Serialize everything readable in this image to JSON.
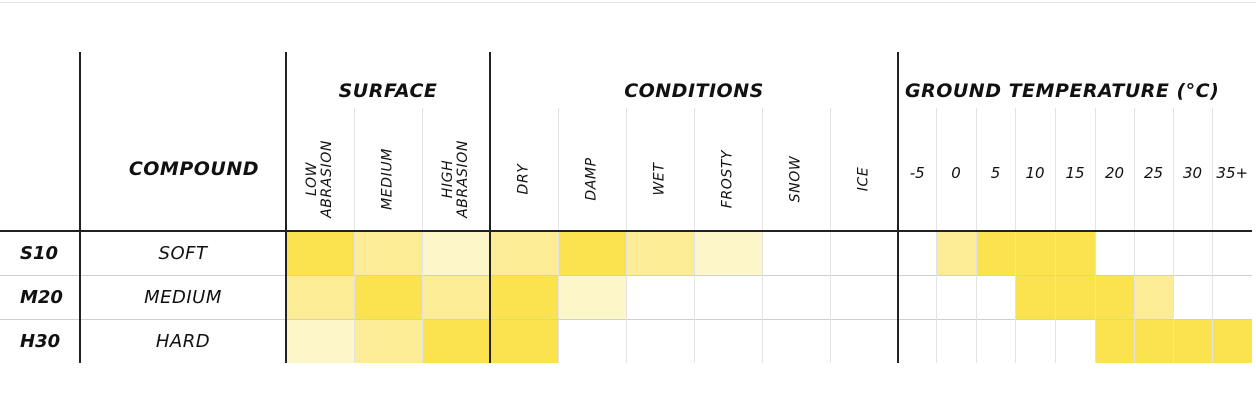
{
  "headers": {
    "surface": "SURFACE",
    "conditions": "CONDITIONS",
    "ground_temperature": "GROUND TEMPERATURE (°C)",
    "compound": "COMPOUND"
  },
  "surface_columns": [
    "LOW\nABRASION",
    "MEDIUM",
    "HIGH\nABRASION"
  ],
  "condition_columns": [
    "DRY",
    "DAMP",
    "WET",
    "FROSTY",
    "SNOW",
    "ICE"
  ],
  "temperature_columns": [
    "-5",
    "0",
    "5",
    "10",
    "15",
    "20",
    "25",
    "30",
    "35+"
  ],
  "colors": {
    "full": "#FBE34F",
    "mid": "#FCEC95",
    "light": "#FDF6C9",
    "none": "#FFFFFF"
  },
  "rows": [
    {
      "code": "S10",
      "compound": "SOFT",
      "surface": [
        "full",
        "mid",
        "light"
      ],
      "conditions": [
        "mid",
        "full",
        "mid",
        "light",
        "none",
        "none"
      ],
      "temperature": [
        "none",
        "mid",
        "full",
        "full",
        "full",
        "none",
        "none",
        "none",
        "none"
      ]
    },
    {
      "code": "M20",
      "compound": "MEDIUM",
      "surface": [
        "mid",
        "full",
        "mid"
      ],
      "conditions": [
        "full",
        "light",
        "none",
        "none",
        "none",
        "none"
      ],
      "temperature": [
        "none",
        "none",
        "none",
        "full",
        "full",
        "full",
        "mid",
        "none",
        "none"
      ]
    },
    {
      "code": "H30",
      "compound": "HARD",
      "surface": [
        "light",
        "mid",
        "full"
      ],
      "conditions": [
        "full",
        "none",
        "none",
        "none",
        "none",
        "none"
      ],
      "temperature": [
        "none",
        "none",
        "none",
        "none",
        "none",
        "full",
        "full",
        "full",
        "full"
      ]
    }
  ]
}
